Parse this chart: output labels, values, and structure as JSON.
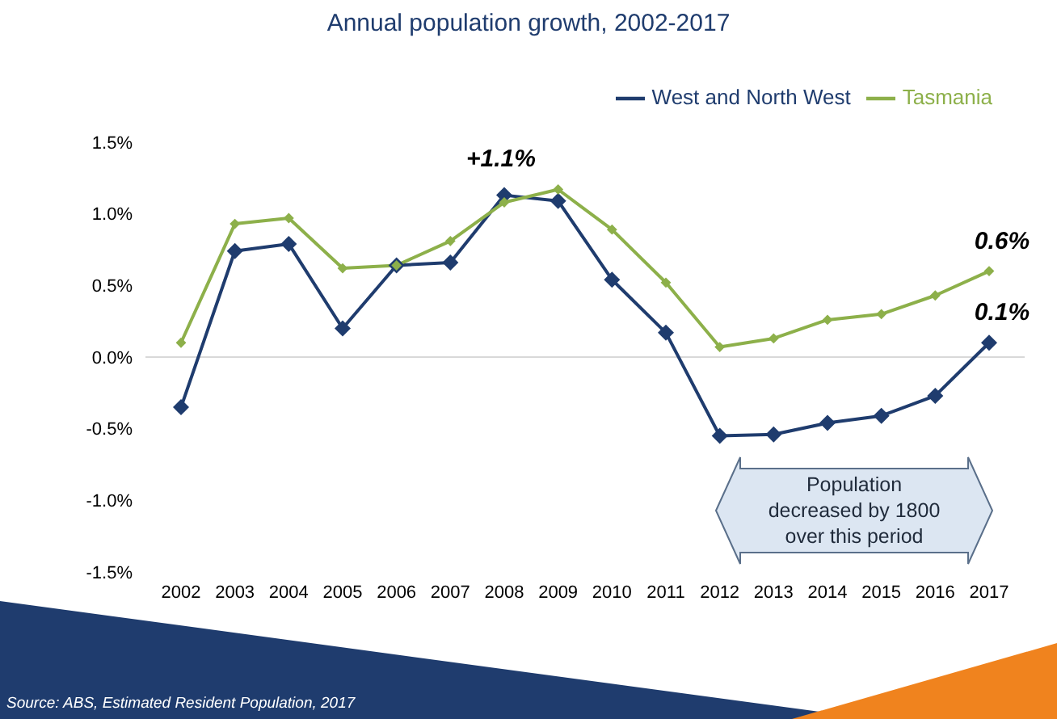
{
  "chart_data": {
    "type": "line",
    "title": "Annual population growth, 2002-2017",
    "categories": [
      "2002",
      "2003",
      "2004",
      "2005",
      "2006",
      "2007",
      "2008",
      "2009",
      "2010",
      "2011",
      "2012",
      "2013",
      "2014",
      "2015",
      "2016",
      "2017"
    ],
    "series": [
      {
        "name": "West and North West",
        "color": "#1f3c6e",
        "values": [
          -0.35,
          0.74,
          0.79,
          0.2,
          0.64,
          0.66,
          1.13,
          1.09,
          0.54,
          0.17,
          -0.55,
          -0.54,
          -0.46,
          -0.41,
          -0.27,
          0.1
        ]
      },
      {
        "name": "Tasmania",
        "color": "#8db04a",
        "values": [
          0.1,
          0.93,
          0.97,
          0.62,
          0.64,
          0.81,
          1.08,
          1.17,
          0.89,
          0.52,
          0.07,
          0.13,
          0.26,
          0.3,
          0.43,
          0.6
        ]
      }
    ],
    "ylim": [
      -1.5,
      1.5
    ],
    "yticks": [
      {
        "value": -1.5,
        "label": "-1.5%"
      },
      {
        "value": -1.0,
        "label": "-1.0%"
      },
      {
        "value": -0.5,
        "label": "-0.5%"
      },
      {
        "value": 0,
        "label": "0.0%"
      },
      {
        "value": 0.5,
        "label": "0.5%"
      },
      {
        "value": 1.0,
        "label": "1.0%"
      },
      {
        "value": 1.5,
        "label": "1.5%"
      }
    ],
    "ref_lines": [
      {
        "axis": "y",
        "value": 0,
        "color": "#d9d9d9"
      }
    ],
    "grid": false,
    "legend": "top right",
    "marker": "diamond",
    "line_style": "solid",
    "annotations": [
      {
        "text": "+1.1%",
        "x": "2008",
        "y": 1.13
      },
      {
        "text": "0.6%",
        "x": "2017",
        "y": 0.6
      },
      {
        "text": "0.1%",
        "x": "2017",
        "y": 0.1
      },
      "Population decreased by 1800 over this period",
      "Source: ABS, Estimated Resident Population, 2017"
    ]
  }
}
